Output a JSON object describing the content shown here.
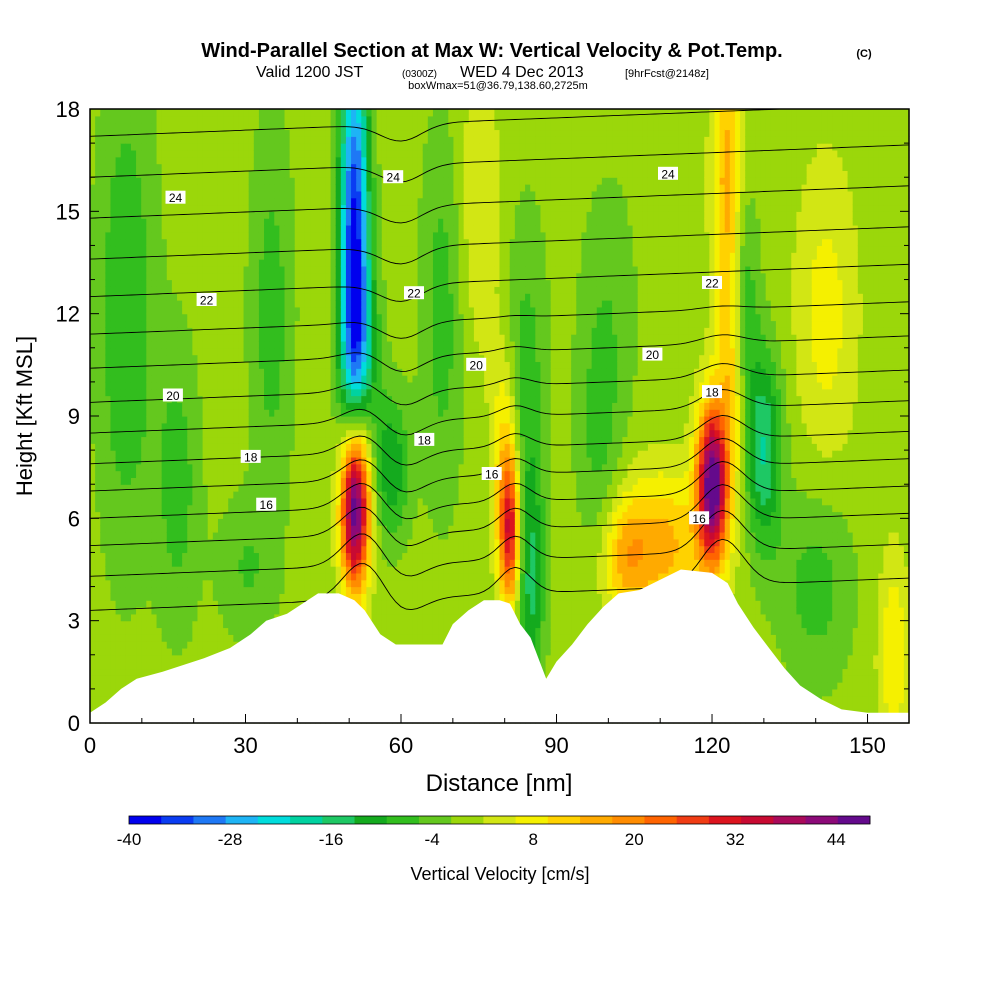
{
  "title": "Wind-Parallel Section at Max W: Vertical Velocity & Pot.Temp.",
  "title_mark": "(C)",
  "subtitle": {
    "valid_prefix": "Valid 1200 JST",
    "utc": "(0300Z)",
    "date": "WED 4 Dec 2013",
    "forecast": "[9hrFcst@2148z]",
    "box_info": "boxWmax=51@36.79,138.60,2725m"
  },
  "chart_data": {
    "type": "heatmap",
    "xlabel": "Distance [nm]",
    "ylabel": "Height [Kft MSL]",
    "xlim": [
      0,
      158
    ],
    "ylim": [
      0,
      18
    ],
    "x_ticks": [
      0,
      30,
      60,
      90,
      120,
      150
    ],
    "y_ticks": [
      0,
      3,
      6,
      9,
      12,
      15,
      18
    ],
    "colorbar": {
      "label": "Vertical Velocity [cm/s]",
      "range": [
        -40,
        48
      ],
      "step": 4,
      "tick_labels": [
        "-40",
        "-28",
        "-16",
        "-4",
        "8",
        "20",
        "32",
        "44"
      ],
      "colors": [
        "#0000ee",
        "#0a3cf2",
        "#1e78f5",
        "#1eb4f5",
        "#00dcdc",
        "#00d2a0",
        "#1ec864",
        "#14aa1e",
        "#32be1e",
        "#64c81e",
        "#9bd70a",
        "#d2e614",
        "#f5f000",
        "#ffd200",
        "#ffaa00",
        "#ff8c00",
        "#ff6400",
        "#f03c14",
        "#dc141e",
        "#c80a32",
        "#aa0a5a",
        "#8c0a78",
        "#640a8c"
      ]
    },
    "terrain": [
      [
        0,
        0.3
      ],
      [
        3,
        0.6
      ],
      [
        6,
        1.0
      ],
      [
        9,
        1.3
      ],
      [
        14,
        1.5
      ],
      [
        18,
        1.7
      ],
      [
        22,
        1.9
      ],
      [
        27,
        2.2
      ],
      [
        31,
        2.6
      ],
      [
        34,
        3.0
      ],
      [
        38,
        3.2
      ],
      [
        41,
        3.5
      ],
      [
        44,
        3.8
      ],
      [
        48,
        3.8
      ],
      [
        51,
        3.6
      ],
      [
        53,
        3.3
      ],
      [
        56,
        2.6
      ],
      [
        59,
        2.3
      ],
      [
        68,
        2.3
      ],
      [
        70,
        2.9
      ],
      [
        73,
        3.3
      ],
      [
        76,
        3.6
      ],
      [
        79,
        3.6
      ],
      [
        81,
        3.5
      ],
      [
        83,
        2.9
      ],
      [
        85,
        2.5
      ],
      [
        88,
        1.3
      ],
      [
        90,
        1.8
      ],
      [
        93,
        2.3
      ],
      [
        96,
        2.9
      ],
      [
        99,
        3.4
      ],
      [
        102,
        3.8
      ],
      [
        106,
        3.9
      ],
      [
        110,
        4.2
      ],
      [
        114,
        4.5
      ],
      [
        120,
        4.4
      ],
      [
        123,
        4.1
      ],
      [
        125,
        3.5
      ],
      [
        128,
        2.8
      ],
      [
        131,
        2.2
      ],
      [
        134,
        1.6
      ],
      [
        137,
        1.1
      ],
      [
        141,
        0.7
      ],
      [
        145,
        0.4
      ],
      [
        150,
        0.3
      ],
      [
        158,
        0.3
      ]
    ],
    "w_centers": [
      {
        "x": 51,
        "z": 6.2,
        "sx": 1.8,
        "sz": 1.6,
        "w": 44
      },
      {
        "x": 52,
        "z": 8.0,
        "sx": 2.2,
        "sz": 2.2,
        "w": 16
      },
      {
        "x": 51,
        "z": 14.5,
        "sx": 2.0,
        "sz": 4.0,
        "w": -38
      },
      {
        "x": 52,
        "z": 10.5,
        "sx": 2.5,
        "sz": 2.0,
        "w": -20
      },
      {
        "x": 58,
        "z": 7.5,
        "sx": 2.5,
        "sz": 1.5,
        "w": -14
      },
      {
        "x": 81,
        "z": 5.6,
        "sx": 1.4,
        "sz": 1.5,
        "w": 32
      },
      {
        "x": 80,
        "z": 8.0,
        "sx": 1.8,
        "sz": 2.2,
        "w": 12
      },
      {
        "x": 85,
        "z": 4.0,
        "sx": 1.8,
        "sz": 2.5,
        "w": -14
      },
      {
        "x": 84,
        "z": 10.0,
        "sx": 3.0,
        "sz": 3.5,
        "w": -8
      },
      {
        "x": 120,
        "z": 7.0,
        "sx": 2.0,
        "sz": 1.6,
        "w": 50
      },
      {
        "x": 123,
        "z": 16.0,
        "sx": 2.0,
        "sz": 3.0,
        "w": 16
      },
      {
        "x": 124,
        "z": 10.0,
        "sx": 2.0,
        "sz": 2.5,
        "w": 14
      },
      {
        "x": 130,
        "z": 8.0,
        "sx": 2.5,
        "sz": 2.0,
        "w": -18
      },
      {
        "x": 126,
        "z": 12.0,
        "sx": 2.0,
        "sz": 2.5,
        "w": -12
      },
      {
        "x": 110,
        "z": 5.2,
        "sx": 6.0,
        "sz": 1.5,
        "w": 16
      },
      {
        "x": 103,
        "z": 4.8,
        "sx": 3.0,
        "sz": 1.2,
        "w": 10
      },
      {
        "x": 155,
        "z": 2.0,
        "sx": 2.0,
        "sz": 2.0,
        "w": 10
      },
      {
        "x": 142,
        "z": 12.0,
        "sx": 4.0,
        "sz": 3.0,
        "w": 8
      },
      {
        "x": 75,
        "z": 15.0,
        "sx": 3.0,
        "sz": 3.0,
        "w": 6
      },
      {
        "x": 100,
        "z": 12.0,
        "sx": 4.0,
        "sz": 3.0,
        "w": -5
      },
      {
        "x": 7,
        "z": 12.0,
        "sx": 4.0,
        "sz": 5.0,
        "w": -10
      },
      {
        "x": 17,
        "z": 7.0,
        "sx": 3.0,
        "sz": 3.0,
        "w": -8
      },
      {
        "x": 35,
        "z": 12.0,
        "sx": 3.0,
        "sz": 4.0,
        "w": -8
      },
      {
        "x": 68,
        "z": 12.0,
        "sx": 3.0,
        "sz": 4.0,
        "w": -8
      },
      {
        "x": 98,
        "z": 8.0,
        "sx": 3.0,
        "sz": 2.5,
        "w": -6
      },
      {
        "x": 140,
        "z": 4.0,
        "sx": 5.0,
        "sz": 2.0,
        "w": -8
      },
      {
        "x": 30,
        "z": 4.5,
        "sx": 4.0,
        "sz": 1.5,
        "w": -6
      }
    ],
    "theta_levels": [
      {
        "base": 3.3,
        "label": ""
      },
      {
        "base": 4.3,
        "label": ""
      },
      {
        "base": 5.2,
        "label": "16"
      },
      {
        "base": 6.0,
        "label": ""
      },
      {
        "base": 6.8,
        "label": "18"
      },
      {
        "base": 7.6,
        "label": ""
      },
      {
        "base": 8.5,
        "label": "20"
      },
      {
        "base": 9.4,
        "label": ""
      },
      {
        "base": 10.4,
        "label": "22"
      },
      {
        "base": 11.4,
        "label": ""
      },
      {
        "base": 12.5,
        "label": "24"
      },
      {
        "base": 13.6,
        "label": ""
      },
      {
        "base": 14.8,
        "label": ""
      },
      {
        "base": 16.0,
        "label": ""
      },
      {
        "base": 17.2,
        "label": ""
      }
    ],
    "contour_labels": [
      {
        "text": "24",
        "x": 16.5,
        "z": 15.4
      },
      {
        "text": "24",
        "x": 58.5,
        "z": 16.0
      },
      {
        "text": "24",
        "x": 111.5,
        "z": 16.1
      },
      {
        "text": "22",
        "x": 22.5,
        "z": 12.4
      },
      {
        "text": "22",
        "x": 62.5,
        "z": 12.6
      },
      {
        "text": "22",
        "x": 120.0,
        "z": 12.9
      },
      {
        "text": "20",
        "x": 16.0,
        "z": 9.6
      },
      {
        "text": "20",
        "x": 74.5,
        "z": 10.5
      },
      {
        "text": "20",
        "x": 108.5,
        "z": 10.8
      },
      {
        "text": "18",
        "x": 31.0,
        "z": 7.8
      },
      {
        "text": "18",
        "x": 64.5,
        "z": 8.3
      },
      {
        "text": "18",
        "x": 120.0,
        "z": 9.7
      },
      {
        "text": "16",
        "x": 34.0,
        "z": 6.4
      },
      {
        "text": "16",
        "x": 77.5,
        "z": 7.3
      },
      {
        "text": "16",
        "x": 117.5,
        "z": 6.0
      }
    ]
  }
}
